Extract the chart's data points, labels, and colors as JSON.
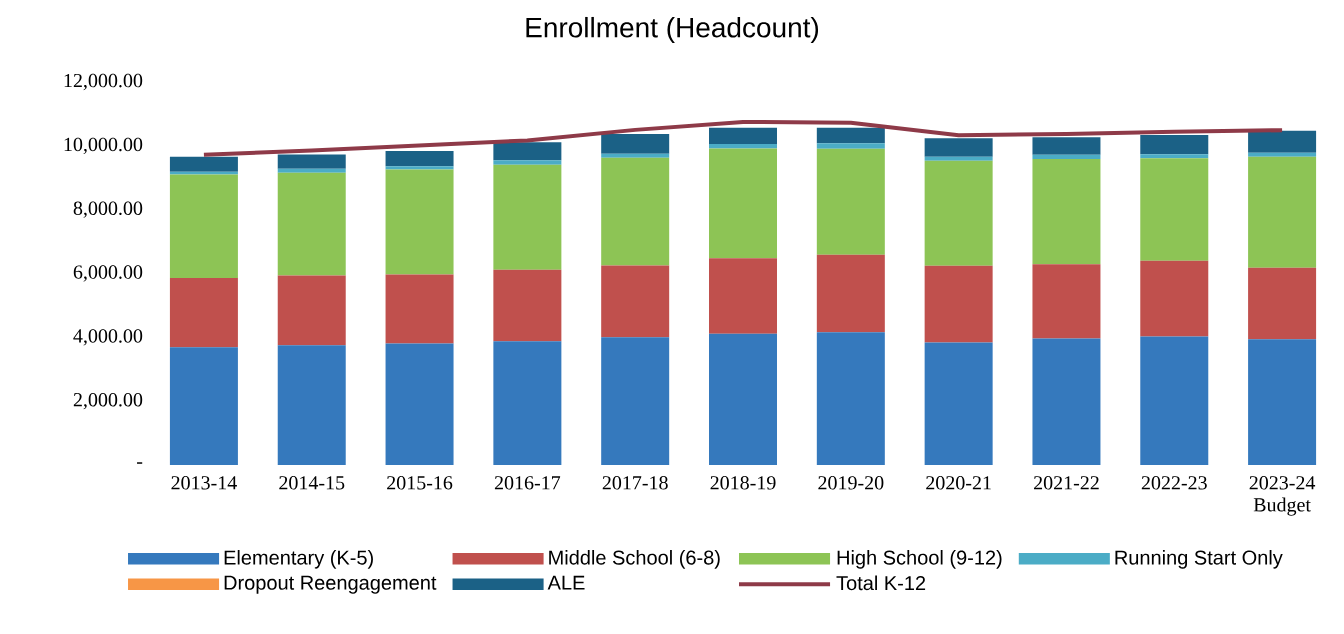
{
  "chart_data": {
    "type": "bar",
    "stacked": true,
    "title": "Enrollment (Headcount)",
    "categories": [
      "2013-14",
      "2014-15",
      "2015-16",
      "2016-17",
      "2017-18",
      "2018-19",
      "2019-20",
      "2020-21",
      "2021-22",
      "2022-23",
      "2023-24 Budget"
    ],
    "series": [
      {
        "name": "Elementary (K-5)",
        "color": "#3579bd",
        "values": [
          3690,
          3750,
          3810,
          3880,
          4000,
          4110,
          4160,
          3840,
          3960,
          4030,
          3940
        ]
      },
      {
        "name": "Middle School (6-8)",
        "color": "#c0504d",
        "values": [
          2170,
          2190,
          2160,
          2240,
          2250,
          2370,
          2430,
          2400,
          2330,
          2370,
          2240
        ]
      },
      {
        "name": "High School (9-12)",
        "color": "#8dc455",
        "values": [
          3240,
          3220,
          3290,
          3290,
          3380,
          3440,
          3320,
          3290,
          3300,
          3210,
          3480
        ]
      },
      {
        "name": "Running Start Only",
        "color": "#4bacc6",
        "values": [
          90,
          120,
          100,
          140,
          120,
          140,
          170,
          130,
          130,
          130,
          120
        ]
      },
      {
        "name": "Dropout Reengagement",
        "color": "#f79646",
        "values": [
          0,
          0,
          0,
          0,
          0,
          0,
          0,
          0,
          0,
          0,
          0
        ]
      },
      {
        "name": "ALE",
        "color": "#1b6186",
        "values": [
          470,
          450,
          480,
          560,
          620,
          510,
          490,
          580,
          550,
          600,
          690
        ]
      },
      {
        "name": "Total K-12",
        "type": "line",
        "color": "#8e3a48",
        "values": [
          9720,
          9850,
          10010,
          10170,
          10500,
          10750,
          10720,
          10330,
          10370,
          10440,
          10490
        ]
      }
    ],
    "ylim": [
      0,
      12000
    ],
    "yticks": [
      {
        "value": 0,
        "label": "-"
      },
      {
        "value": 2000,
        "label": "2,000.00"
      },
      {
        "value": 4000,
        "label": "4,000.00"
      },
      {
        "value": 6000,
        "label": "6,000.00"
      },
      {
        "value": 8000,
        "label": "8,000.00"
      },
      {
        "value": 10000,
        "label": "10,000.00"
      },
      {
        "value": 12000,
        "label": "12,000.00"
      }
    ],
    "legend": "bottom"
  }
}
